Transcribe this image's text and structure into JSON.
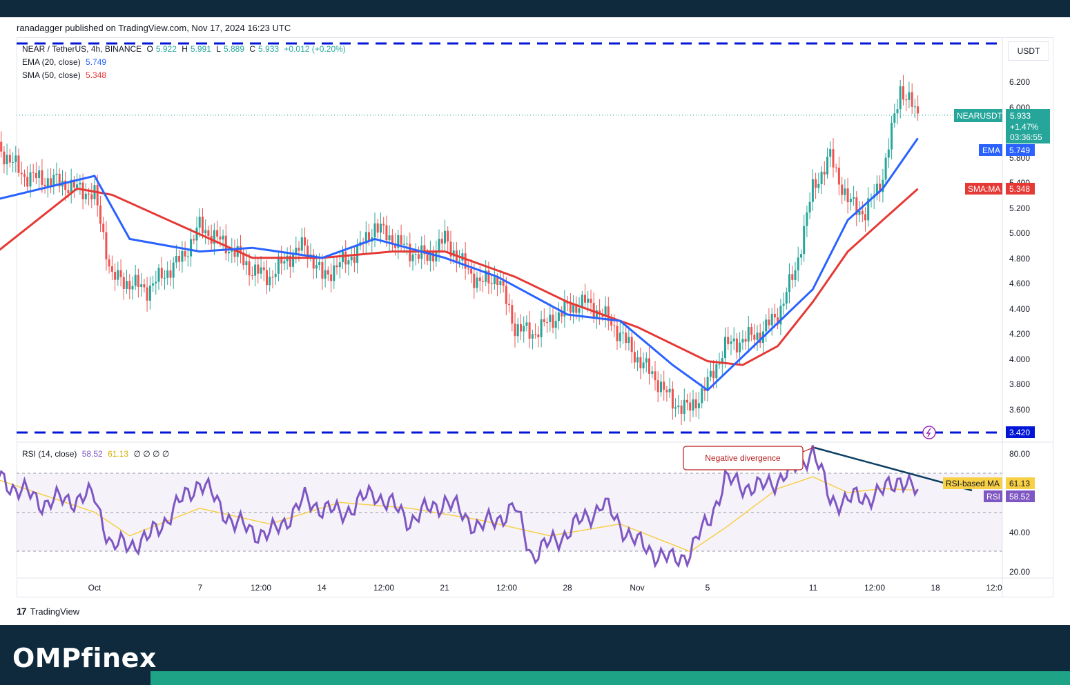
{
  "publisher_line": "ranadagger published on TradingView.com, Nov 17, 2024 16:23 UTC",
  "symbol_line": {
    "symbol": "NEAR / TetherUS, 4h, BINANCE",
    "open_label": "O",
    "open": "5.922",
    "high_label": "H",
    "high": "5.991",
    "low_label": "L",
    "low": "5.889",
    "close_label": "C",
    "close": "5.933",
    "change": "+0.012 (+0.20%)"
  },
  "ema_legend": {
    "label": "EMA (20, close)",
    "value": "5.749"
  },
  "sma_legend": {
    "label": "SMA (50, close)",
    "value": "5.348"
  },
  "rsi_legend": {
    "label": "RSI (14, close)",
    "value": "58.52",
    "ma_value": "61.13",
    "extra": "∅ ∅ ∅ ∅"
  },
  "currency": "USDT",
  "price_ticks": [
    "6.200",
    "6.000",
    "5.800",
    "5.400",
    "5.200",
    "5.000",
    "4.800",
    "4.600",
    "4.400",
    "4.200",
    "4.000",
    "3.800",
    "3.600"
  ],
  "rsi_ticks": [
    "80.00",
    "40.00",
    "20.00"
  ],
  "time_ticks": [
    "Oct",
    "7",
    "12:00",
    "14",
    "12:00",
    "21",
    "12:00",
    "28",
    "Nov",
    "5",
    "11",
    "12:00",
    "18",
    "12:0"
  ],
  "tags": {
    "price_symbol": "NEARUSDT",
    "price_value": "5.933",
    "price_change": "+1.47%",
    "countdown": "03:36:55",
    "ema_label": "EMA",
    "ema_value": "5.749",
    "sma_label": "SMA:MA",
    "sma_value": "5.348",
    "support_value": "3.420",
    "rsi_ma_label": "RSI-based MA",
    "rsi_ma_value": "61.13",
    "rsi_label": "RSI",
    "rsi_value": "58.52"
  },
  "annotation": "Negative divergence",
  "tv_brand": "TradingView",
  "footer_brand": "OMPfinex",
  "colors": {
    "bull": "#26a69a",
    "bear": "#ef5350",
    "ema": "#2962ff",
    "sma": "#e53935",
    "rsi": "#7e57c2",
    "rsi_ma": "#f7d046",
    "level": "#0015d6",
    "divergence": "#0c3e62"
  },
  "chart_data": {
    "type": "line",
    "pair": "NEAR / TetherUS",
    "timeframe": "4h",
    "price_ylim": [
      3.42,
      6.45
    ],
    "resistance_level": 6.28,
    "support_level": 3.42,
    "close_path": {
      "x": [
        "Sep 25",
        "Sep 27",
        "Sep 29",
        "Oct 1",
        "Oct 2",
        "Oct 4",
        "Oct 6",
        "Oct 7",
        "Oct 8",
        "Oct 9",
        "Oct 10",
        "Oct 11",
        "Oct 12",
        "Oct 13",
        "Oct 14",
        "Oct 16",
        "Oct 17",
        "Oct 18",
        "Oct 19",
        "Oct 20",
        "Oct 21",
        "Oct 22",
        "Oct 23",
        "Oct 24",
        "Oct 25",
        "Oct 26",
        "Oct 27",
        "Oct 28",
        "Oct 29",
        "Oct 30",
        "Oct 31",
        "Nov 1",
        "Nov 2",
        "Nov 3",
        "Nov 4",
        "Nov 5",
        "Nov 6",
        "Nov 7",
        "Nov 8",
        "Nov 9",
        "Nov 10",
        "Nov 11",
        "Nov 12",
        "Nov 13",
        "Nov 14",
        "Nov 15",
        "Nov 16",
        "Nov 17"
      ],
      "y": [
        5.75,
        5.45,
        5.4,
        5.3,
        4.65,
        4.55,
        4.8,
        5.05,
        4.95,
        4.85,
        4.7,
        4.65,
        4.8,
        4.9,
        4.65,
        4.85,
        5.05,
        4.95,
        4.85,
        4.8,
        4.95,
        4.75,
        4.6,
        4.65,
        4.25,
        4.2,
        4.3,
        4.4,
        4.45,
        4.35,
        4.2,
        4.0,
        3.85,
        3.65,
        3.6,
        3.8,
        4.1,
        4.15,
        4.2,
        4.35,
        4.7,
        5.35,
        5.6,
        5.25,
        5.15,
        5.45,
        6.15,
        5.93
      ]
    },
    "ema20": {
      "x": [
        "Sep 25",
        "Oct 1",
        "Oct 3",
        "Oct 7",
        "Oct 10",
        "Oct 14",
        "Oct 17",
        "Oct 21",
        "Oct 24",
        "Oct 28",
        "Oct 31",
        "Nov 3",
        "Nov 5",
        "Nov 8",
        "Nov 11",
        "Nov 13",
        "Nov 15",
        "Nov 17"
      ],
      "y": [
        5.25,
        5.45,
        4.95,
        4.85,
        4.88,
        4.8,
        4.95,
        4.8,
        4.65,
        4.35,
        4.3,
        3.95,
        3.75,
        4.15,
        4.55,
        5.1,
        5.35,
        5.749
      ]
    },
    "sma50": {
      "x": [
        "Sep 25",
        "Sep 30",
        "Oct 2",
        "Oct 6",
        "Oct 10",
        "Oct 14",
        "Oct 18",
        "Oct 21",
        "Oct 25",
        "Oct 28",
        "Nov 1",
        "Nov 5",
        "Nov 7",
        "Nov 9",
        "Nov 11",
        "Nov 13",
        "Nov 15",
        "Nov 17"
      ],
      "y": [
        4.8,
        5.35,
        5.3,
        5.05,
        4.8,
        4.8,
        4.85,
        4.85,
        4.65,
        4.45,
        4.25,
        3.98,
        3.95,
        4.1,
        4.45,
        4.85,
        5.1,
        5.348
      ]
    },
    "rsi": {
      "ylim": [
        20,
        90
      ],
      "bands": [
        70,
        50,
        30
      ],
      "x": [
        "Sep 25",
        "Sep 28",
        "Oct 1",
        "Oct 2",
        "Oct 4",
        "Oct 7",
        "Oct 9",
        "Oct 11",
        "Oct 13",
        "Oct 15",
        "Oct 17",
        "Oct 19",
        "Oct 21",
        "Oct 23",
        "Oct 25",
        "Oct 26",
        "Oct 28",
        "Oct 30",
        "Nov 1",
        "Nov 3",
        "Nov 4",
        "Nov 5",
        "Nov 6",
        "Nov 8",
        "Nov 10",
        "Nov 11",
        "Nov 12",
        "Nov 13",
        "Nov 15",
        "Nov 16",
        "Nov 17"
      ],
      "y": [
        70,
        55,
        58,
        32,
        36,
        66,
        44,
        38,
        56,
        49,
        60,
        46,
        56,
        42,
        52,
        28,
        40,
        54,
        34,
        25,
        30,
        45,
        66,
        62,
        72,
        82,
        56,
        56,
        60,
        68,
        58.52
      ]
    },
    "rsi_ma": {
      "x": [
        "Sep 25",
        "Oct 1",
        "Oct 3",
        "Oct 7",
        "Oct 11",
        "Oct 15",
        "Oct 19",
        "Oct 23",
        "Oct 27",
        "Oct 31",
        "Nov 4",
        "Nov 6",
        "Nov 9",
        "Nov 11",
        "Nov 13",
        "Nov 15",
        "Nov 17"
      ],
      "y": [
        68,
        50,
        38,
        52,
        44,
        55,
        52,
        46,
        38,
        44,
        30,
        42,
        62,
        68,
        60,
        62,
        61.13
      ]
    },
    "divergence_annotation": "Negative divergence"
  }
}
